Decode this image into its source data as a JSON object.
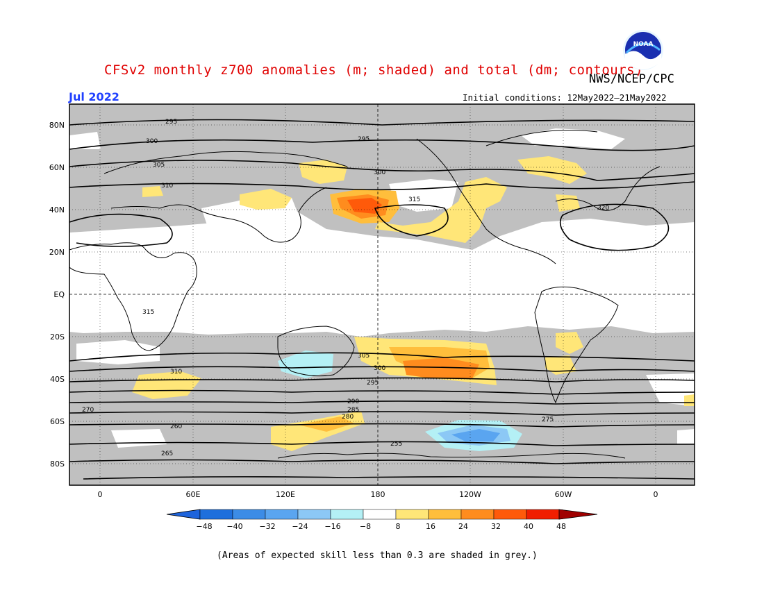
{
  "title": "CFSv2 monthly z700 anomalies (m; shaded) and total (dm; contours)",
  "agency": "NWS/NCEP/CPC",
  "period": "Jul 2022",
  "initial_conditions": "Initial conditions: 12May2022–21May2022",
  "footer_note": "(Areas of expected skill less than 0.3 are shaded in grey.)",
  "logo_text": "NOAA",
  "map": {
    "lat_labels": [
      "80N",
      "60N",
      "40N",
      "20N",
      "EQ",
      "20S",
      "40S",
      "60S",
      "80S"
    ],
    "lon_labels": [
      "0",
      "60E",
      "120E",
      "180",
      "120W",
      "60W",
      "0"
    ],
    "colors": {
      "grey_skill": "#c0c0c0",
      "contour": "#000000",
      "coast": "#000000"
    }
  },
  "colorbar": {
    "labels": [
      "−48",
      "−40",
      "−32",
      "−24",
      "−16",
      "−8",
      "8",
      "16",
      "24",
      "32",
      "40",
      "48"
    ],
    "colors": [
      "#1e6fdc",
      "#3c8ce6",
      "#5aa5f0",
      "#8cc8f5",
      "#b4f0f5",
      "#ffffff",
      "#ffe678",
      "#ffbe3c",
      "#ff8c1e",
      "#ff5a0a",
      "#f01e00",
      "#c00000"
    ],
    "low_arrow_color": "#1e64dc",
    "high_arrow_color": "#a00000"
  },
  "contour_labels": [
    "295",
    "300",
    "305",
    "310",
    "315",
    "320",
    "300",
    "295",
    "315",
    "310",
    "305",
    "300",
    "295",
    "290",
    "285",
    "280",
    "275",
    "270",
    "265",
    "260",
    "255"
  ]
}
